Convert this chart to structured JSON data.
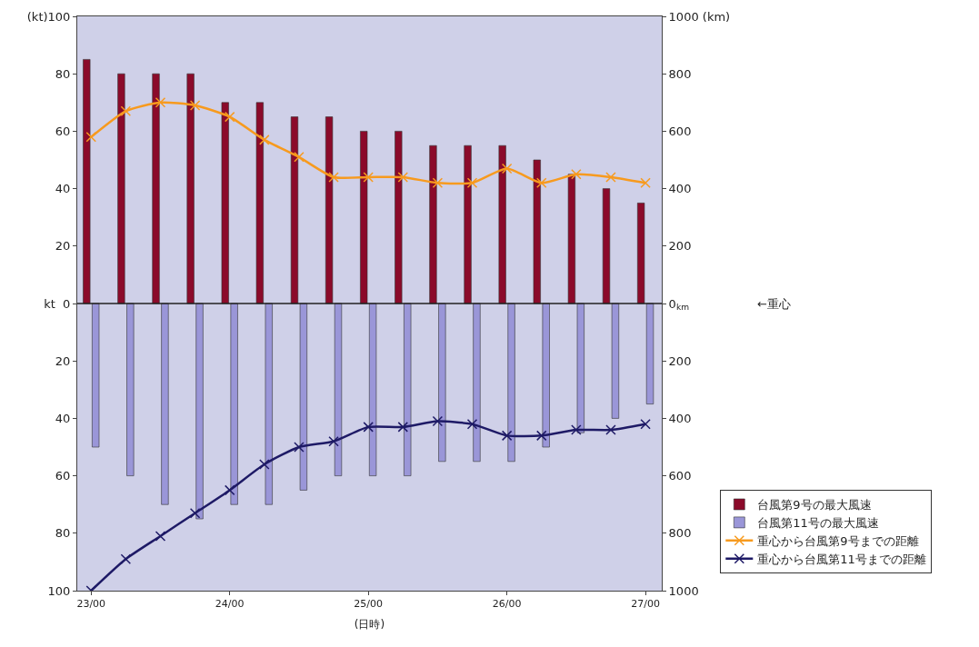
{
  "chart_data": {
    "type": "bar",
    "xlabel": "(日時)",
    "annotations": [
      "←重心"
    ],
    "categories": [
      "23/00",
      null,
      null,
      null,
      "24/00",
      null,
      null,
      null,
      "25/00",
      null,
      null,
      null,
      "26/00",
      null,
      null,
      null,
      "27/00"
    ],
    "ylim": [
      -100,
      100
    ],
    "yticks": [
      {
        "value": -100,
        "label": "100"
      },
      {
        "value": -80,
        "label": "80"
      },
      {
        "value": -60,
        "label": "60"
      },
      {
        "value": -40,
        "label": "40"
      },
      {
        "value": -20,
        "label": "20"
      },
      {
        "value": 0,
        "label": "kt  0"
      },
      20,
      40,
      60,
      80,
      {
        "value": 100,
        "label": "(kt)100"
      }
    ],
    "y2lim": [
      -1000,
      1000
    ],
    "y2ticks": [
      {
        "value": -1000,
        "label": "1000"
      },
      {
        "value": -800,
        "label": "800"
      },
      {
        "value": -600,
        "label": "600"
      },
      {
        "value": -400,
        "label": "400"
      },
      {
        "value": -200,
        "label": "200"
      },
      {
        "value": 0,
        "label": "0$_{km}$"
      },
      200,
      400,
      600,
      800,
      {
        "value": 1000,
        "label": "1000 (km)"
      }
    ],
    "grid": false,
    "ref_lines": [
      {
        "axis": "y",
        "value": 0,
        "color": "#222222"
      }
    ],
    "legend": "right",
    "marker": "cross",
    "line_style": "solid",
    "series": [
      {
        "name": "台風第9号の最大風速",
        "color": "#8b0a2a",
        "values": [
          85,
          80,
          80,
          80,
          70,
          70,
          65,
          65,
          60,
          60,
          55,
          55,
          55,
          50,
          45,
          40,
          35
        ]
      },
      {
        "name": "台風第11号の最大風速",
        "color": "#9a96d8",
        "values": [
          -50,
          -60,
          -70,
          -75,
          -70,
          -70,
          -65,
          -60,
          -60,
          -60,
          -55,
          -55,
          -55,
          -50,
          -45,
          -40,
          -35
        ]
      },
      {
        "name": "重心から台風第9号までの距離",
        "type": "line",
        "axis": "y2",
        "color": "#f79a1e",
        "values": [
          580,
          670,
          700,
          690,
          650,
          570,
          510,
          440,
          440,
          440,
          420,
          420,
          470,
          420,
          450,
          440,
          420
        ]
      },
      {
        "name": "重心から台風第11号までの距離",
        "type": "line",
        "axis": "y2",
        "color": "#1e1a66",
        "values": [
          -1000,
          -890,
          -810,
          -730,
          -650,
          -560,
          -500,
          -480,
          -430,
          -430,
          -410,
          -420,
          -460,
          -460,
          -440,
          -440,
          -420
        ]
      }
    ]
  }
}
